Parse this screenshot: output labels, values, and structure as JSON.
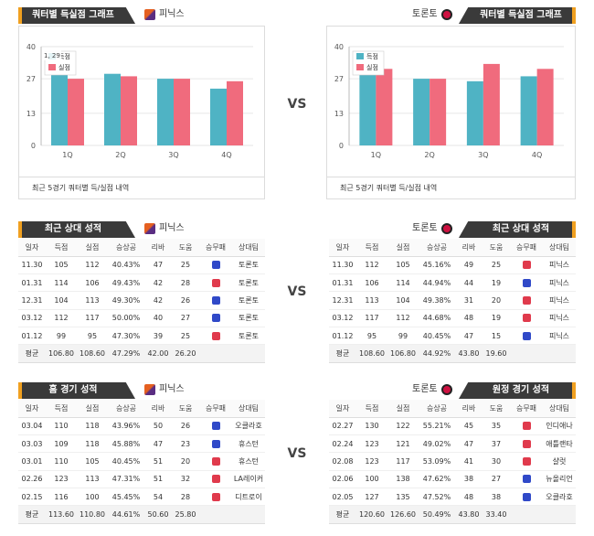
{
  "vs_label": "VS",
  "left_team": "피닉스",
  "right_team": "토론토",
  "sections": {
    "quarter_graph_title": "쿼터별 득실점 그래프",
    "recent_title": "최근 상대 성적",
    "home_title": "홈 경기 성적",
    "away_title": "원정 경기 성적"
  },
  "chart_note": "최근 5경기 쿼터별 득/실점 내역",
  "colors": {
    "scored": "#4fb3c4",
    "conceded": "#f06b7d",
    "header_bg": "#3a3a3a",
    "accent": "#f0a020",
    "win_badge": "#3049c8",
    "loss_badge": "#e03a4c"
  },
  "chart_data": [
    {
      "type": "bar",
      "categories": [
        "1Q",
        "2Q",
        "3Q",
        "4Q"
      ],
      "series": [
        {
          "name": "득점",
          "values": [
            29,
            29,
            27,
            23
          ]
        },
        {
          "name": "실점",
          "values": [
            27,
            28,
            27,
            26
          ]
        }
      ],
      "yticks": [
        "0",
        "13",
        "27",
        "40"
      ],
      "ylim": [
        0,
        40
      ],
      "tooltip": "1, 29",
      "legend_position": "top-left",
      "title": "",
      "xlabel": "",
      "ylabel": ""
    },
    {
      "type": "bar",
      "categories": [
        "1Q",
        "2Q",
        "3Q",
        "4Q"
      ],
      "series": [
        {
          "name": "득점",
          "values": [
            30,
            27,
            26,
            28
          ]
        },
        {
          "name": "실점",
          "values": [
            31,
            27,
            33,
            31
          ]
        }
      ],
      "yticks": [
        "0",
        "13",
        "27",
        "40"
      ],
      "ylim": [
        0,
        40
      ],
      "legend_position": "top-left",
      "title": "",
      "xlabel": "",
      "ylabel": ""
    }
  ],
  "columns": [
    "일자",
    "득점",
    "실점",
    "승상공",
    "리바",
    "도움",
    "승무패",
    "상대팀"
  ],
  "recent_left": {
    "rows": [
      {
        "date": "11.30",
        "pts": "105",
        "opp_pts": "112",
        "pct": "40.43%",
        "reb": "47",
        "ast": "25",
        "result": "win",
        "opp": "토론토"
      },
      {
        "date": "01.31",
        "pts": "114",
        "opp_pts": "106",
        "pct": "49.43%",
        "reb": "42",
        "ast": "28",
        "result": "loss",
        "opp": "토론토"
      },
      {
        "date": "12.31",
        "pts": "104",
        "opp_pts": "113",
        "pct": "49.30%",
        "reb": "42",
        "ast": "26",
        "result": "win",
        "opp": "토론토"
      },
      {
        "date": "03.12",
        "pts": "112",
        "opp_pts": "117",
        "pct": "50.00%",
        "reb": "40",
        "ast": "27",
        "result": "win",
        "opp": "토론토"
      },
      {
        "date": "01.12",
        "pts": "99",
        "opp_pts": "95",
        "pct": "47.30%",
        "reb": "39",
        "ast": "25",
        "result": "loss",
        "opp": "토론토"
      }
    ],
    "avg": {
      "label": "평균",
      "pts": "106.80",
      "opp_pts": "108.60",
      "pct": "47.29%",
      "reb": "42.00",
      "ast": "26.20"
    }
  },
  "recent_right": {
    "rows": [
      {
        "date": "11.30",
        "pts": "112",
        "opp_pts": "105",
        "pct": "45.16%",
        "reb": "49",
        "ast": "25",
        "result": "loss",
        "opp": "피닉스"
      },
      {
        "date": "01.31",
        "pts": "106",
        "opp_pts": "114",
        "pct": "44.94%",
        "reb": "44",
        "ast": "19",
        "result": "win",
        "opp": "피닉스"
      },
      {
        "date": "12.31",
        "pts": "113",
        "opp_pts": "104",
        "pct": "49.38%",
        "reb": "31",
        "ast": "20",
        "result": "loss",
        "opp": "피닉스"
      },
      {
        "date": "03.12",
        "pts": "117",
        "opp_pts": "112",
        "pct": "44.68%",
        "reb": "48",
        "ast": "19",
        "result": "loss",
        "opp": "피닉스"
      },
      {
        "date": "01.12",
        "pts": "95",
        "opp_pts": "99",
        "pct": "40.45%",
        "reb": "47",
        "ast": "15",
        "result": "win",
        "opp": "피닉스"
      }
    ],
    "avg": {
      "label": "평균",
      "pts": "108.60",
      "opp_pts": "106.80",
      "pct": "44.92%",
      "reb": "43.80",
      "ast": "19.60"
    }
  },
  "home_left": {
    "rows": [
      {
        "date": "03.04",
        "pts": "110",
        "opp_pts": "118",
        "pct": "43.96%",
        "reb": "50",
        "ast": "26",
        "result": "win",
        "opp": "오클라호"
      },
      {
        "date": "03.03",
        "pts": "109",
        "opp_pts": "118",
        "pct": "45.88%",
        "reb": "47",
        "ast": "23",
        "result": "win",
        "opp": "휴스턴"
      },
      {
        "date": "03.01",
        "pts": "110",
        "opp_pts": "105",
        "pct": "40.45%",
        "reb": "51",
        "ast": "20",
        "result": "loss",
        "opp": "휴스턴"
      },
      {
        "date": "02.26",
        "pts": "123",
        "opp_pts": "113",
        "pct": "47.31%",
        "reb": "51",
        "ast": "32",
        "result": "loss",
        "opp": "LA레이커"
      },
      {
        "date": "02.15",
        "pts": "116",
        "opp_pts": "100",
        "pct": "45.45%",
        "reb": "54",
        "ast": "28",
        "result": "loss",
        "opp": "디트로이"
      }
    ],
    "avg": {
      "label": "평균",
      "pts": "113.60",
      "opp_pts": "110.80",
      "pct": "44.61%",
      "reb": "50.60",
      "ast": "25.80"
    }
  },
  "away_right": {
    "rows": [
      {
        "date": "02.27",
        "pts": "130",
        "opp_pts": "122",
        "pct": "55.21%",
        "reb": "45",
        "ast": "35",
        "result": "loss",
        "opp": "인디애나"
      },
      {
        "date": "02.24",
        "pts": "123",
        "opp_pts": "121",
        "pct": "49.02%",
        "reb": "47",
        "ast": "37",
        "result": "loss",
        "opp": "애틀랜타"
      },
      {
        "date": "02.08",
        "pts": "123",
        "opp_pts": "117",
        "pct": "53.09%",
        "reb": "41",
        "ast": "30",
        "result": "loss",
        "opp": "샬럿"
      },
      {
        "date": "02.06",
        "pts": "100",
        "opp_pts": "138",
        "pct": "47.62%",
        "reb": "38",
        "ast": "27",
        "result": "win",
        "opp": "뉴올리언"
      },
      {
        "date": "02.05",
        "pts": "127",
        "opp_pts": "135",
        "pct": "47.52%",
        "reb": "48",
        "ast": "38",
        "result": "win",
        "opp": "오클라호"
      }
    ],
    "avg": {
      "label": "평균",
      "pts": "120.60",
      "opp_pts": "126.60",
      "pct": "50.49%",
      "reb": "43.80",
      "ast": "33.40"
    }
  }
}
